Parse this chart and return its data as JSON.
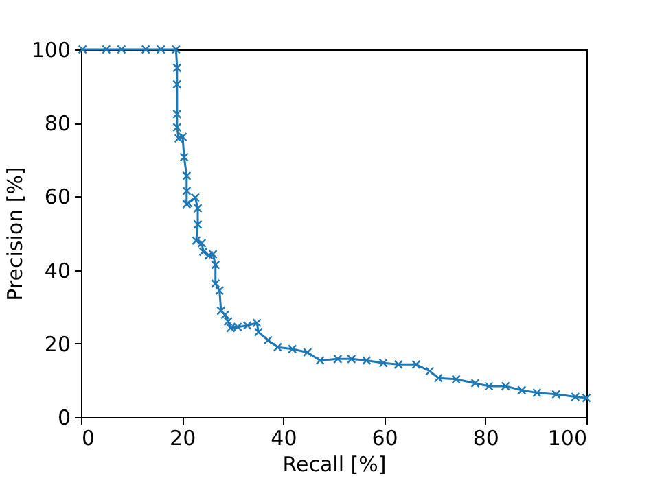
{
  "chart_data": {
    "type": "line",
    "xlabel": "Recall [%]",
    "ylabel": "Precision [%]",
    "x": [
      0.3,
      5,
      8,
      12.8,
      15.8,
      18.8,
      19,
      19,
      19,
      19,
      19.3,
      20.1,
      20.4,
      20.9,
      20.9,
      20.9,
      21.2,
      22.6,
      23.1,
      23.1,
      22.8,
      23.9,
      24.2,
      25.3,
      26.1,
      26.6,
      26.6,
      27.4,
      27.7,
      28.5,
      29.1,
      29.6,
      31,
      32.9,
      34.8,
      35.1,
      37,
      38.9,
      41.8,
      44.8,
      47.3,
      50.8,
      53.5,
      56.5,
      59.8,
      62.8,
      66.3,
      69,
      70.7,
      74.2,
      78,
      80.7,
      84,
      87.2,
      90.2,
      94,
      97.8,
      100
    ],
    "series": [
      {
        "color": "#1f77b4",
        "values": [
          100,
          100,
          100,
          100,
          100,
          100,
          95,
          90.5,
          82.4,
          78.8,
          75.8,
          76.2,
          70.7,
          65.6,
          61.5,
          57.9,
          58.2,
          59.7,
          56.8,
          52.4,
          48,
          47.3,
          45,
          44,
          44.3,
          41.4,
          36.3,
          34.4,
          28.9,
          27.8,
          26,
          24.2,
          24.5,
          24.9,
          25.6,
          23.1,
          20.9,
          19,
          18.5,
          17.6,
          15.4,
          15.8,
          15.8,
          15.4,
          14.7,
          14.3,
          14.3,
          12.5,
          10.6,
          10.3,
          9.2,
          8.4,
          8.4,
          7.3,
          6.6,
          6.2,
          5.5,
          5.2
        ]
      }
    ],
    "xlim": [
      0,
      100
    ],
    "ylim": [
      0,
      100
    ],
    "xticks": [
      0,
      20,
      40,
      60,
      80,
      100
    ],
    "yticks": [
      0,
      20,
      40,
      60,
      80,
      100
    ],
    "marker": "cross",
    "line_style": "solid"
  }
}
